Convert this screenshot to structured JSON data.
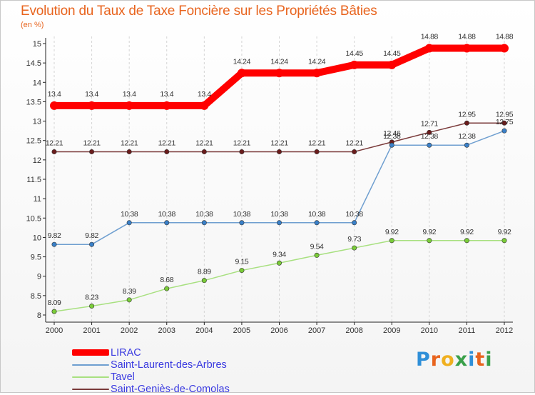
{
  "title": "Evolution du Taux de Taxe Foncière sur les Propriétés Bâties",
  "unit_label": "(en %)",
  "logo": {
    "text": "Proxiti",
    "letters": [
      "P",
      "r",
      "o",
      "x",
      "i",
      "t",
      "i"
    ],
    "colors": [
      "#2f8fd8",
      "#e8641e",
      "#f0b020",
      "#3aa04a",
      "#2f8fd8",
      "#e8641e",
      "#3aa04a"
    ]
  },
  "chart_data": {
    "type": "line",
    "title": "Evolution du Taux de Taxe Foncière sur les Propriétés Bâties",
    "ylabel": "(en %)",
    "xlabel": "",
    "ylim": [
      8,
      15
    ],
    "yticks": [
      "8",
      "8.5",
      "9",
      "9.5",
      "10",
      "10.5",
      "11",
      "11.5",
      "12",
      "12.5",
      "13",
      "13.5",
      "14",
      "14.5",
      "15"
    ],
    "x": [
      "2000",
      "2001",
      "2002",
      "2003",
      "2004",
      "2005",
      "2006",
      "2007",
      "2008",
      "2009",
      "2010",
      "2011",
      "2012"
    ],
    "grid": "vertical dashed",
    "legend": "bottom-left",
    "series": [
      {
        "name": "LIRAC",
        "color": "#ff0000",
        "marker": "#ff0000",
        "width": 10,
        "values": [
          13.4,
          13.4,
          13.4,
          13.4,
          13.4,
          14.24,
          14.24,
          14.24,
          14.45,
          14.45,
          14.88,
          14.88,
          14.88
        ],
        "labels": [
          "13.4",
          "13.4",
          "13.4",
          "13.4",
          "13.4",
          "14.24",
          "14.24",
          "14.24",
          "14.45",
          "14.45",
          "14.88",
          "14.88",
          "14.88"
        ],
        "labels_shown": [
          true,
          true,
          true,
          true,
          true,
          true,
          true,
          true,
          true,
          true,
          true,
          true,
          true
        ]
      },
      {
        "name": "Saint-Laurent-des-Arbres",
        "color": "#6f9fd0",
        "marker": "#3a80c8",
        "width": 1.5,
        "values": [
          9.82,
          9.82,
          10.38,
          10.38,
          10.38,
          10.38,
          10.38,
          10.38,
          10.38,
          12.38,
          12.38,
          12.38,
          12.75
        ],
        "labels": [
          "9.82",
          "9.82",
          "10.38",
          "10.38",
          "10.38",
          "10.38",
          "10.38",
          "10.38",
          "10.38",
          "12.38",
          "12.38",
          "12.38",
          "12.75"
        ],
        "labels_shown": [
          true,
          true,
          true,
          true,
          true,
          true,
          true,
          true,
          true,
          true,
          true,
          true,
          true
        ]
      },
      {
        "name": "Tavel",
        "color": "#a8e080",
        "marker": "#7acc38",
        "width": 1.5,
        "values": [
          8.09,
          8.23,
          8.39,
          8.68,
          8.89,
          9.15,
          9.34,
          9.54,
          9.73,
          9.92,
          9.92,
          9.92,
          9.92
        ],
        "labels": [
          "8.09",
          "8.23",
          "8.39",
          "8.68",
          "8.89",
          "9.15",
          "9.34",
          "9.54",
          "9.73",
          "9.92",
          "9.92",
          "9.92",
          "9.92"
        ],
        "labels_shown": [
          true,
          true,
          true,
          true,
          true,
          true,
          true,
          true,
          true,
          true,
          true,
          true,
          true
        ]
      },
      {
        "name": "Saint-Geniès-de-Comolas",
        "color": "#7a3a3a",
        "marker": "#6a1c1c",
        "width": 1.5,
        "values": [
          12.21,
          12.21,
          12.21,
          12.21,
          12.21,
          12.21,
          12.21,
          12.21,
          12.21,
          12.46,
          12.71,
          12.95,
          12.95
        ],
        "labels": [
          "12.21",
          "12.21",
          "12.21",
          "12.21",
          "12.21",
          "12.21",
          "12.21",
          "12.21",
          "12.21",
          "12.46",
          "12.71",
          "12.95",
          "12.95"
        ],
        "labels_shown": [
          true,
          true,
          true,
          true,
          true,
          true,
          true,
          true,
          true,
          true,
          true,
          true,
          true
        ]
      }
    ]
  }
}
